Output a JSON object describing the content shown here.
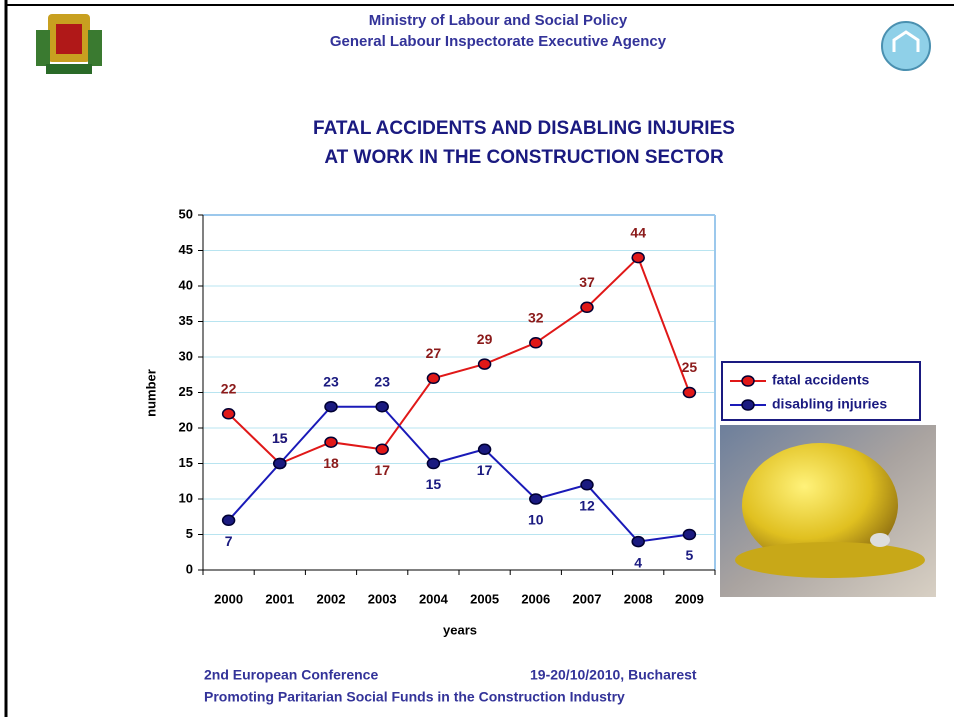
{
  "header": {
    "line1": "Ministry of Labour and Social Policy",
    "line2": "General Labour Inspectorate Executive Agency"
  },
  "chart_data": {
    "type": "line",
    "title": [
      "FATAL ACCIDENTS AND DISABLING INJURIES",
      "AT WORK IN THE CONSTRUCTION SECTOR"
    ],
    "categories": [
      "2000",
      "2001",
      "2002",
      "2003",
      "2004",
      "2005",
      "2006",
      "2007",
      "2008",
      "2009"
    ],
    "series": [
      {
        "name": "fatal accidents",
        "color": "#e01818",
        "values": [
          22,
          15,
          18,
          17,
          27,
          29,
          32,
          37,
          44,
          25
        ]
      },
      {
        "name": "disabling injuries",
        "color": "#1a1ab8",
        "values": [
          7,
          15,
          23,
          23,
          15,
          17,
          10,
          12,
          4,
          5
        ]
      }
    ],
    "ylim": [
      0,
      50
    ],
    "yticks": [
      0,
      5,
      10,
      15,
      20,
      25,
      30,
      35,
      40,
      45,
      50
    ],
    "xlabel": "years",
    "ylabel": "number",
    "grid": true,
    "legend": "right"
  },
  "footer": {
    "conference": "2nd European Conference",
    "date": "19-20/10/2010, Bucharest",
    "subtitle": "Promoting Paritarian Social Funds in the Construction Industry"
  }
}
